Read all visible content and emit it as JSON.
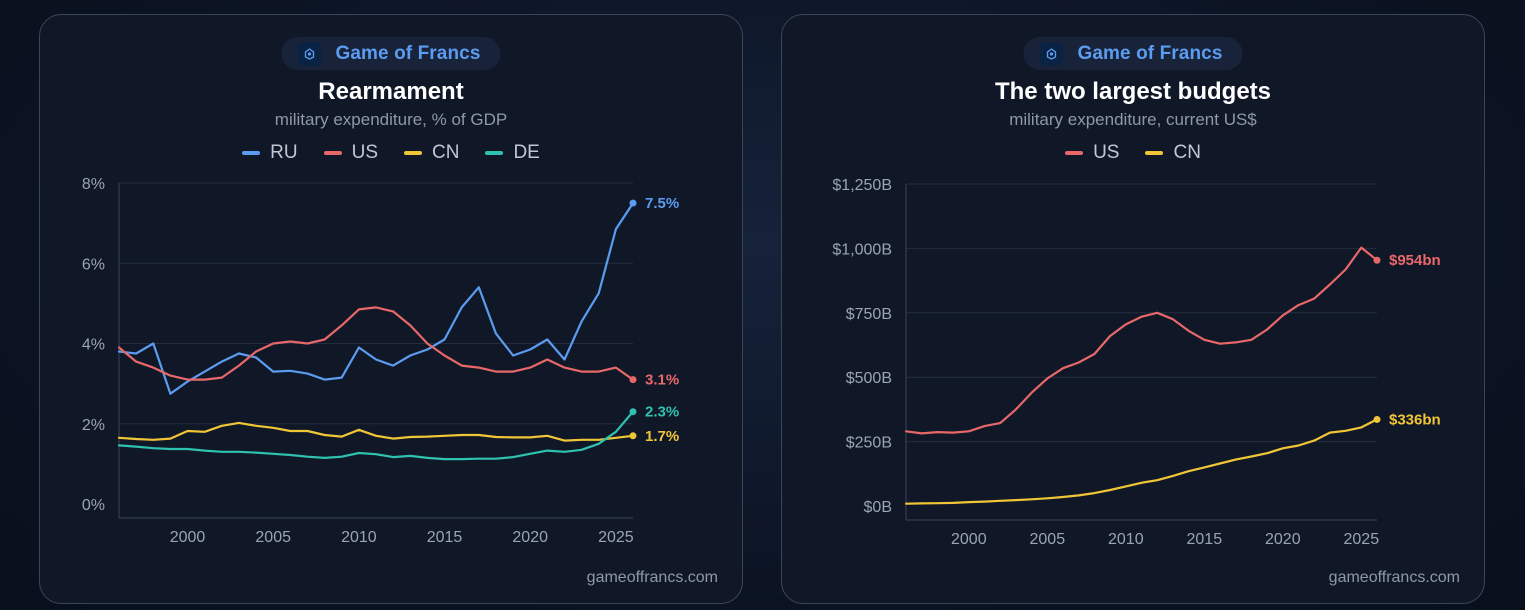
{
  "colors": {
    "RU": "#5b9cf0",
    "US": "#e8686a",
    "CN": "#f1c636",
    "DE": "#2fc2b0"
  },
  "left": {
    "brand": "Game of Francs",
    "title": "Rearmament",
    "subtitle": "military expenditure, % of GDP",
    "footer": "gameoffrancs.com"
  },
  "right": {
    "brand": "Game of Francs",
    "title": "The two largest budgets",
    "subtitle": "military expenditure, current US$",
    "footer": "gameoffrancs.com"
  },
  "chart_data": [
    {
      "type": "line",
      "title": "Rearmament",
      "subtitle": "military expenditure, % of GDP",
      "xlim": [
        1996,
        2026
      ],
      "ylim": [
        0,
        8
      ],
      "x_ticks": [
        "2000",
        "2005",
        "2010",
        "2015",
        "2020",
        "2025"
      ],
      "y_ticks": [
        "0%",
        "2%",
        "4%",
        "6%",
        "8%"
      ],
      "grid": true,
      "legend": "top-center",
      "x": [
        1996,
        1997,
        1998,
        1999,
        2000,
        2001,
        2002,
        2003,
        2004,
        2005,
        2006,
        2007,
        2008,
        2009,
        2010,
        2011,
        2012,
        2013,
        2014,
        2015,
        2016,
        2017,
        2018,
        2019,
        2020,
        2021,
        2022,
        2023,
        2024,
        2025,
        2026
      ],
      "series": [
        {
          "name": "RU",
          "end_label": "7.5%",
          "values": [
            3.8,
            3.75,
            4.0,
            2.75,
            3.05,
            3.3,
            3.55,
            3.75,
            3.65,
            3.3,
            3.32,
            3.25,
            3.1,
            3.15,
            3.9,
            3.6,
            3.45,
            3.7,
            3.85,
            4.1,
            4.9,
            5.4,
            4.25,
            3.7,
            3.85,
            4.1,
            3.6,
            4.55,
            5.25,
            6.85,
            7.5
          ]
        },
        {
          "name": "US",
          "end_label": "3.1%",
          "values": [
            3.9,
            3.55,
            3.4,
            3.2,
            3.1,
            3.1,
            3.15,
            3.45,
            3.8,
            4.0,
            4.05,
            4.0,
            4.1,
            4.45,
            4.85,
            4.9,
            4.8,
            4.45,
            4.0,
            3.7,
            3.45,
            3.4,
            3.3,
            3.3,
            3.4,
            3.6,
            3.4,
            3.3,
            3.3,
            3.4,
            3.1
          ]
        },
        {
          "name": "CN",
          "end_label": "1.7%",
          "values": [
            1.65,
            1.62,
            1.6,
            1.63,
            1.82,
            1.8,
            1.95,
            2.02,
            1.95,
            1.9,
            1.82,
            1.82,
            1.72,
            1.68,
            1.85,
            1.7,
            1.63,
            1.67,
            1.68,
            1.7,
            1.72,
            1.72,
            1.67,
            1.66,
            1.66,
            1.7,
            1.58,
            1.6,
            1.6,
            1.65,
            1.7
          ]
        },
        {
          "name": "DE",
          "end_label": "2.3%",
          "values": [
            1.46,
            1.43,
            1.39,
            1.37,
            1.37,
            1.33,
            1.3,
            1.3,
            1.28,
            1.25,
            1.22,
            1.18,
            1.15,
            1.18,
            1.27,
            1.24,
            1.17,
            1.2,
            1.15,
            1.12,
            1.12,
            1.13,
            1.13,
            1.17,
            1.25,
            1.33,
            1.3,
            1.35,
            1.5,
            1.8,
            2.3
          ]
        }
      ]
    },
    {
      "type": "line",
      "title": "The two largest budgets",
      "subtitle": "military expenditure, current US$",
      "xlim": [
        1996,
        2026
      ],
      "ylim": [
        0,
        1250
      ],
      "x_ticks": [
        "2000",
        "2005",
        "2010",
        "2015",
        "2020",
        "2025"
      ],
      "y_ticks": [
        "$0B",
        "$250B",
        "$500B",
        "$750B",
        "$1,000B",
        "$1,250B"
      ],
      "grid": true,
      "legend": "top-center",
      "x": [
        1996,
        1997,
        1998,
        1999,
        2000,
        2001,
        2002,
        2003,
        2004,
        2005,
        2006,
        2007,
        2008,
        2009,
        2010,
        2011,
        2012,
        2013,
        2014,
        2015,
        2016,
        2017,
        2018,
        2019,
        2020,
        2021,
        2022,
        2023,
        2024,
        2025,
        2026
      ],
      "series": [
        {
          "name": "US",
          "end_label": "$954bn",
          "values": [
            290,
            282,
            287,
            285,
            290,
            310,
            322,
            375,
            440,
            495,
            535,
            557,
            590,
            660,
            705,
            735,
            750,
            725,
            680,
            645,
            630,
            635,
            645,
            685,
            740,
            780,
            805,
            860,
            918,
            1003,
            954
          ]
        },
        {
          "name": "CN",
          "end_label": "$336bn",
          "values": [
            9,
            10,
            11,
            12,
            15,
            17,
            20,
            23,
            26,
            30,
            35,
            41,
            50,
            62,
            76,
            90,
            100,
            117,
            135,
            150,
            165,
            180,
            192,
            205,
            224,
            235,
            254,
            285,
            292,
            305,
            336
          ]
        }
      ]
    }
  ]
}
